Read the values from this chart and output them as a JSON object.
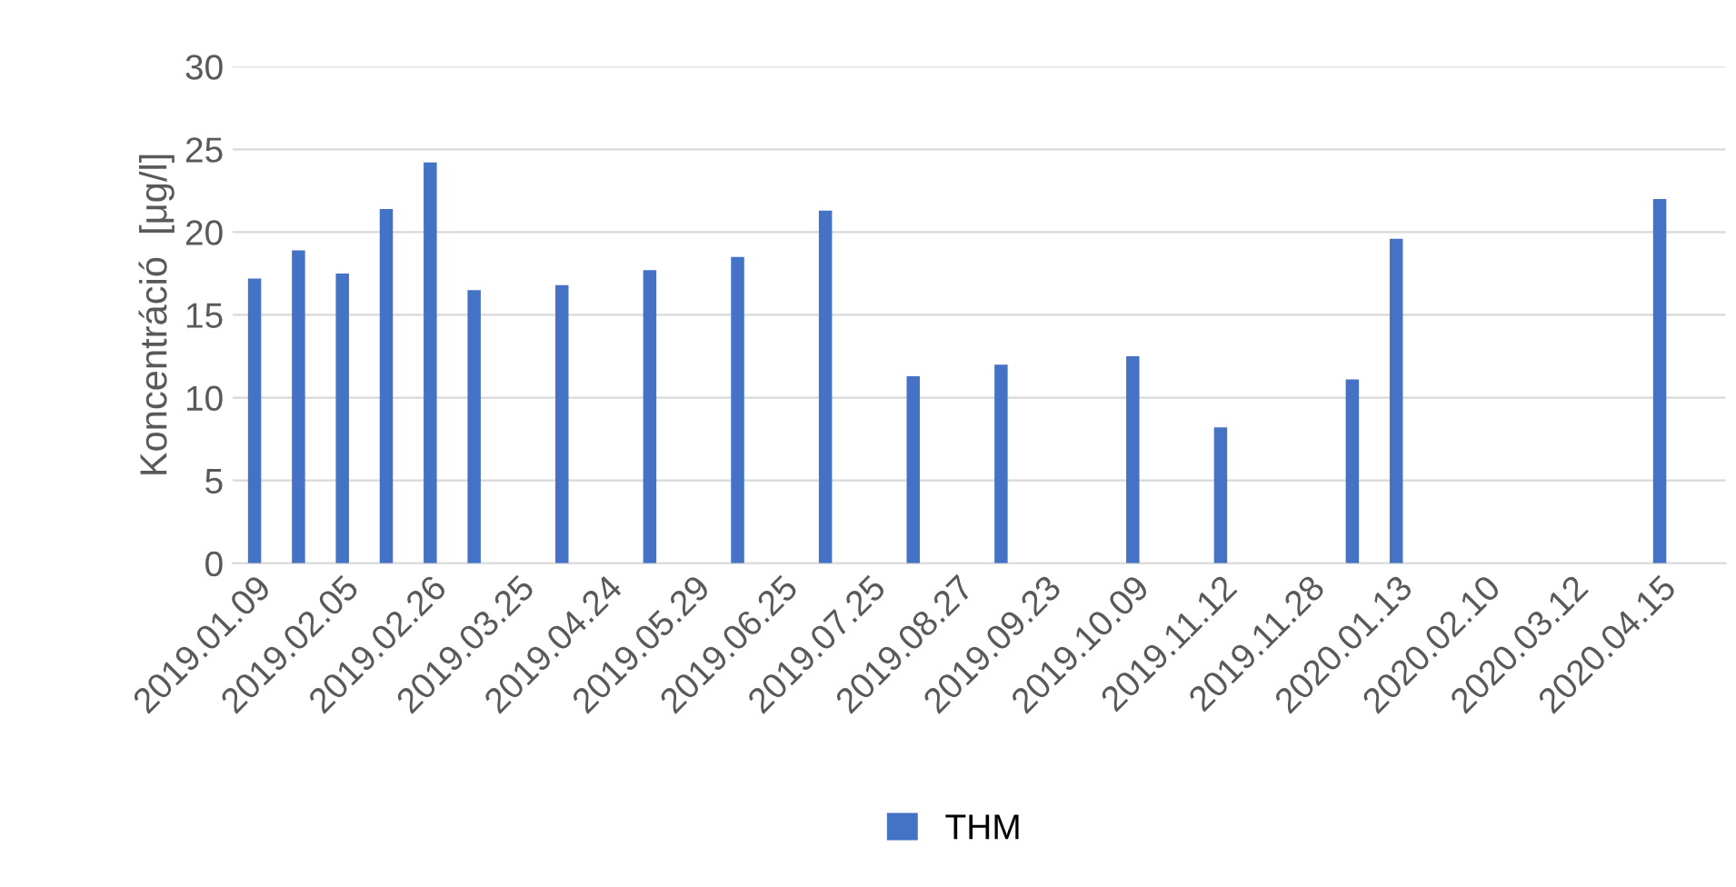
{
  "chart_data": {
    "type": "bar",
    "ylabel": "Koncentráció  [μg/l]",
    "categories": [
      "2019.01.09",
      null,
      "2019.02.05",
      null,
      "2019.02.26",
      null,
      "2019.03.25",
      null,
      "2019.04.24",
      null,
      "2019.05.29",
      null,
      "2019.06.25",
      null,
      "2019.07.25",
      null,
      "2019.08.27",
      null,
      "2019.09.23",
      null,
      "2019.10.09",
      null,
      "2019.11.12",
      null,
      "2019.11.28",
      null,
      "2020.01.13",
      null,
      "2020.02.10",
      null,
      "2020.03.12",
      null,
      "2020.04.15",
      null
    ],
    "series": [
      {
        "name": "THM",
        "color": "#4472c4",
        "values": [
          17.2,
          18.9,
          17.5,
          21.4,
          24.2,
          16.5,
          null,
          16.8,
          null,
          17.7,
          null,
          18.5,
          null,
          21.3,
          null,
          11.3,
          null,
          12.0,
          null,
          null,
          12.5,
          null,
          8.2,
          null,
          null,
          11.1,
          19.6,
          null,
          null,
          null,
          null,
          null,
          22.0,
          null
        ]
      }
    ],
    "ylim": [
      0,
      30
    ],
    "yticks": [
      0,
      5,
      10,
      15,
      20,
      25,
      30
    ],
    "grid": "y",
    "legend": "bottom"
  }
}
